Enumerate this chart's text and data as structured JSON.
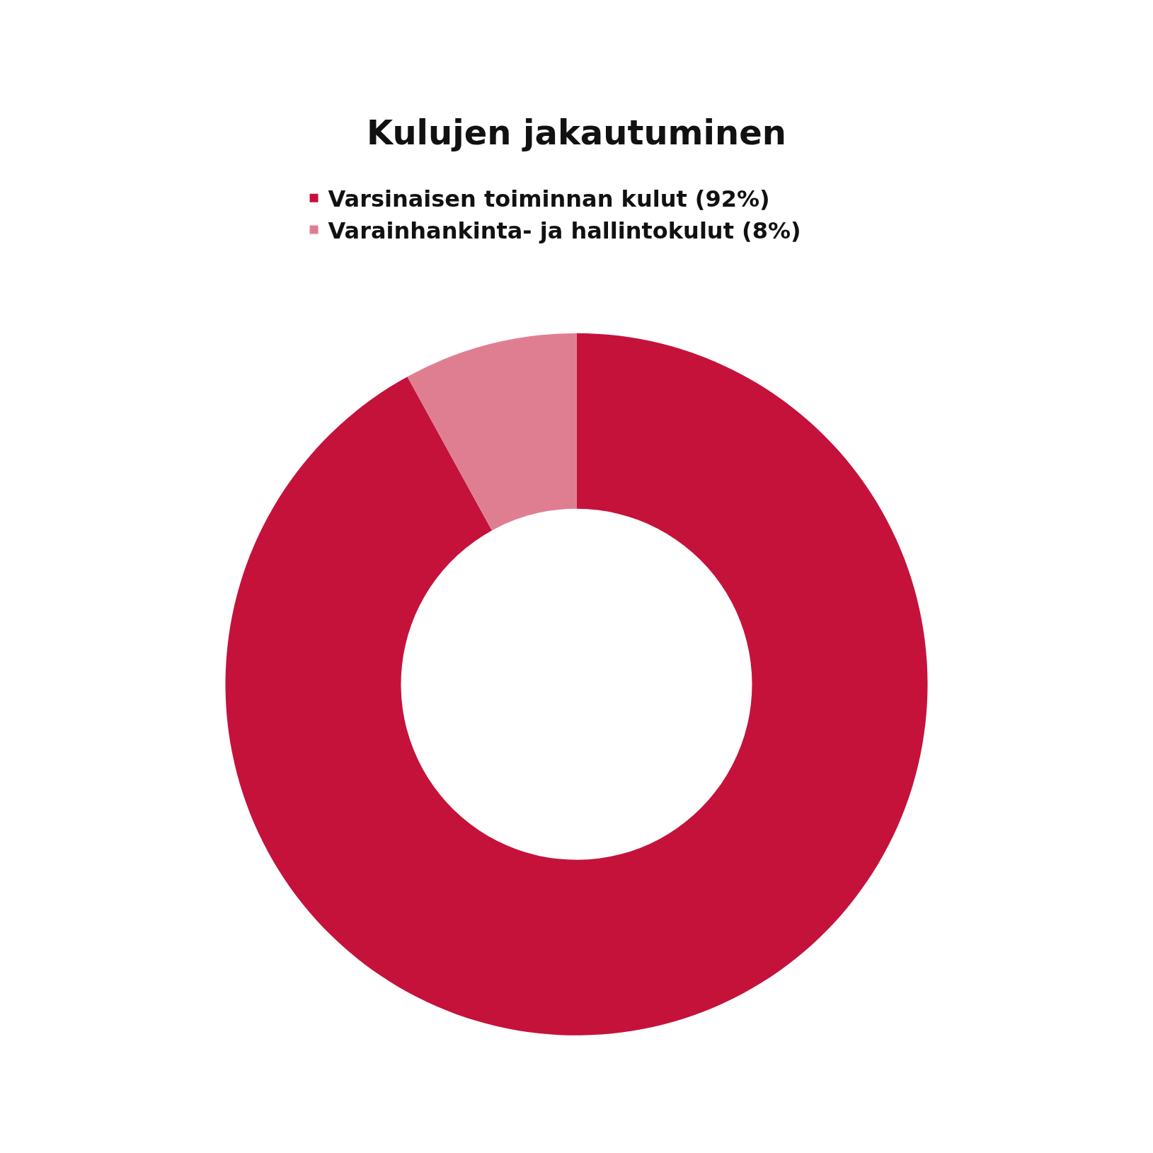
{
  "chart_data": {
    "type": "donut",
    "title": "Kulujen jakautuminen",
    "categories": [
      "Varsinaisen toiminnan kulut (92%)",
      "Varainhankinta- ja hallintokulut (8%)"
    ],
    "values": [
      92,
      8
    ],
    "colors": [
      "#c5123b",
      "#e07e91"
    ],
    "legend": "top"
  }
}
